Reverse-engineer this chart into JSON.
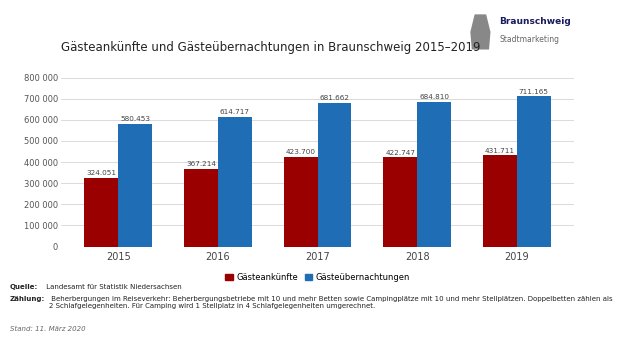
{
  "title": "Gästeankünfte und Gästeübernachtungen in Braunschweig 2015–2019",
  "years": [
    2015,
    2016,
    2017,
    2018,
    2019
  ],
  "gaesteankunfte": [
    324051,
    367214,
    423700,
    422747,
    431711
  ],
  "gaesteuebernachtungen": [
    580453,
    614717,
    681662,
    684810,
    711165
  ],
  "color_ankunfte": "#9B0000",
  "color_uebernachtungen": "#1F6DB5",
  "ylim": [
    0,
    800000
  ],
  "yticks": [
    0,
    100000,
    200000,
    300000,
    400000,
    500000,
    600000,
    700000,
    800000
  ],
  "ytick_labels": [
    "0",
    "100 000",
    "200 000",
    "300 000",
    "400 000",
    "500 000",
    "600 000",
    "700 000",
    "800 000"
  ],
  "legend_ankunfte": "Gästeankünfte",
  "legend_uebernachtungen": "Gästeübernachtungen",
  "quelle_bold": "Quelle:",
  "quelle_rest": " Landesamt für Statistik Niedersachsen",
  "zahlung_bold": "Zählung:",
  "zahlung_rest": " Beherbergungen im Reiseverkehr: Beherbergungsbetriebe mit 10 und mehr Betten sowie Campingplätze mit 10 und mehr Stellplätzen. Doppelbetten zählen als\n2 Schlafgelegenheiten. Für Camping wird 1 Stellplatz in 4 Schlafgelegenheiten umgerechnet.",
  "stand_line": "Stand: 11. März 2020",
  "bg_color": "#FFFFFF",
  "logo_line1": "Braunschweig",
  "logo_line2": "Stadtmarketing"
}
